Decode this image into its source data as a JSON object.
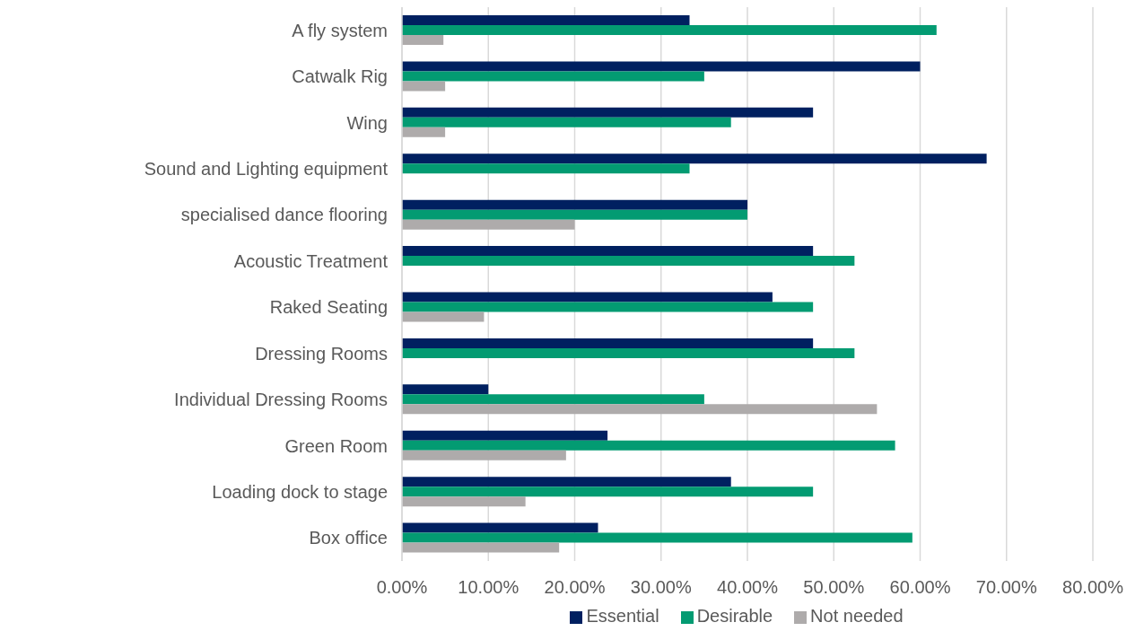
{
  "chart_data": {
    "type": "bar",
    "orientation": "horizontal",
    "categories": [
      "A fly system",
      "Catwalk Rig",
      "Wing",
      "Sound and Lighting equipment",
      "specialised dance flooring",
      "Acoustic Treatment",
      "Raked Seating ",
      "Dressing Rooms",
      "Individual Dressing Rooms",
      "Green Room",
      "Loading dock to stage",
      "Box office "
    ],
    "series": [
      {
        "name": "Essential",
        "color": "#002060",
        "values": [
          33.3,
          60,
          47.6,
          67.7,
          40,
          47.6,
          42.9,
          47.6,
          10,
          23.8,
          38.1,
          22.7
        ]
      },
      {
        "name": "Desirable",
        "color": "#039b72",
        "values": [
          61.9,
          35,
          38.1,
          33.3,
          40,
          52.4,
          47.6,
          52.4,
          35,
          57.1,
          47.6,
          59.1
        ]
      },
      {
        "name": "Not needed",
        "color": "#aeabab",
        "values": [
          4.8,
          5,
          5,
          null,
          20,
          null,
          9.5,
          null,
          55,
          19,
          14.3,
          18.2
        ]
      }
    ],
    "xlim": [
      0,
      80
    ],
    "xticks": [
      {
        "value": 0,
        "label": "0.00%"
      },
      {
        "value": 10,
        "label": "10.00%"
      },
      {
        "value": 20,
        "label": "20.00%"
      },
      {
        "value": 30,
        "label": "30.00%"
      },
      {
        "value": 40,
        "label": "40.00%"
      },
      {
        "value": 50,
        "label": "50.00%"
      },
      {
        "value": 60,
        "label": "60.00%"
      },
      {
        "value": 70,
        "label": "70.00%"
      },
      {
        "value": 80,
        "label": "80.00%"
      }
    ],
    "grid": "x",
    "legend": "bottom"
  }
}
